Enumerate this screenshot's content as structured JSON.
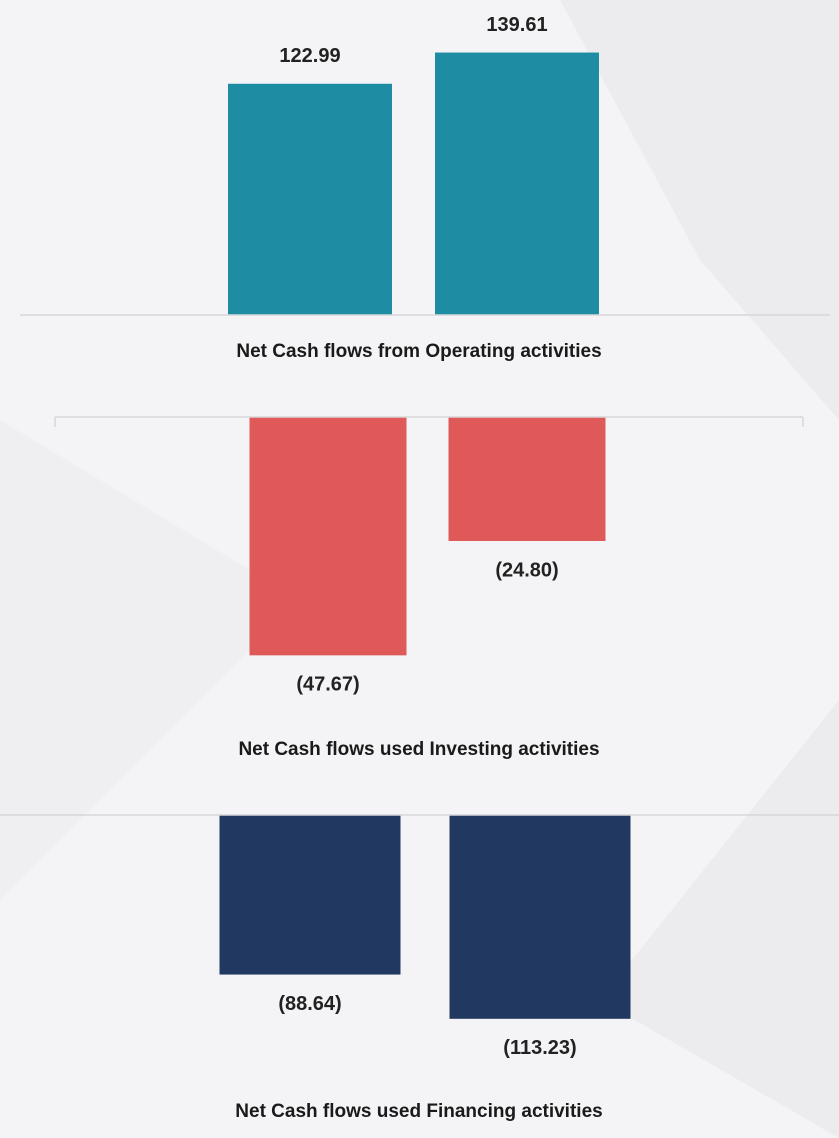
{
  "chart_data": [
    {
      "type": "bar",
      "title": "Net Cash flows from Operating activities",
      "categories": [
        null,
        null
      ],
      "values": [
        122.99,
        139.61
      ],
      "color": "#1e8ca2",
      "ylim": [
        0,
        150
      ]
    },
    {
      "type": "bar",
      "title": "Net Cash flows used Investing activities",
      "categories": [
        null,
        null
      ],
      "values": [
        -47.67,
        -24.8
      ],
      "value_labels": [
        "(47.67)",
        "(24.80)"
      ],
      "color": "#df5959",
      "ylim": [
        -50,
        0
      ]
    },
    {
      "type": "bar",
      "title": "Net Cash flows used Financing activities",
      "categories": [
        null,
        null
      ],
      "values": [
        -88.64,
        -113.23
      ],
      "value_labels": [
        "(88.64)",
        "(113.23)"
      ],
      "color": "#213961",
      "ylim": [
        -120,
        0
      ]
    }
  ]
}
